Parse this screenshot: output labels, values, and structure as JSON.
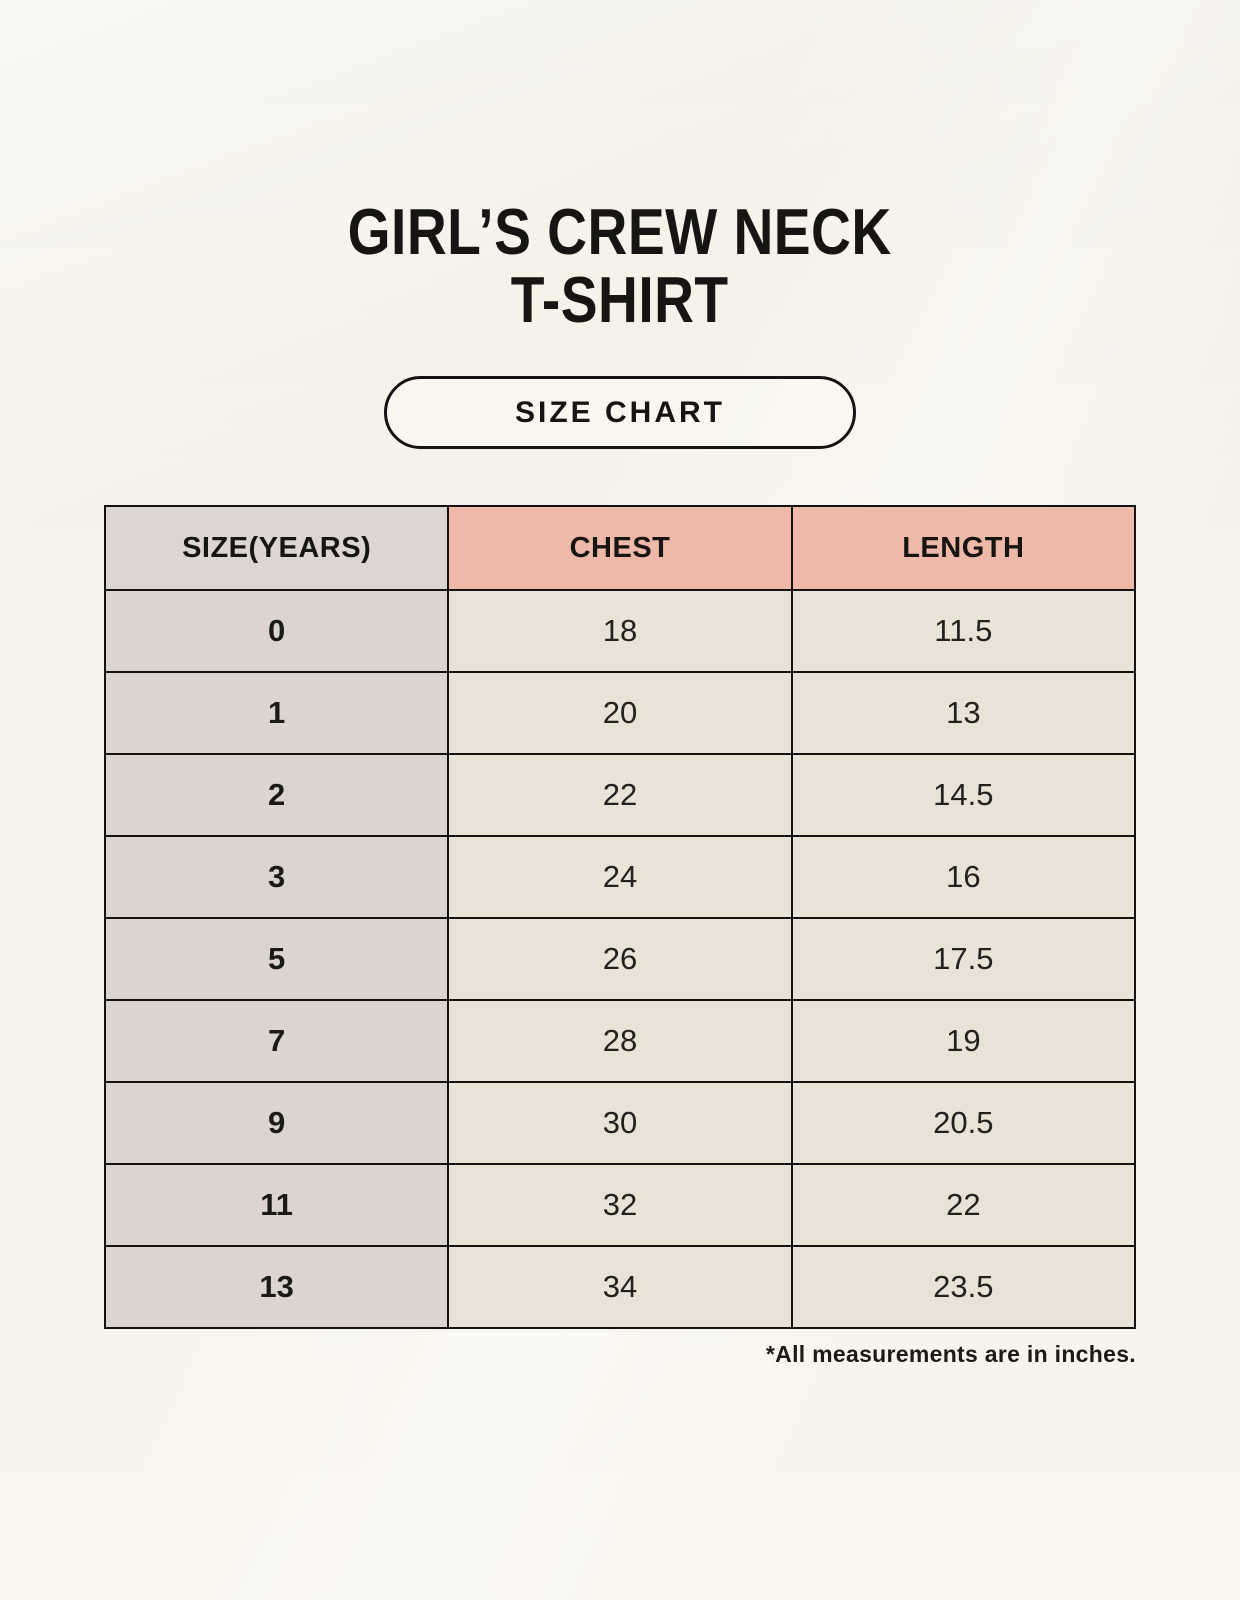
{
  "page": {
    "title_line1": "GIRL’S CREW NECK",
    "title_line2": "T-SHIRT",
    "badge_label": "SIZE CHART",
    "footnote": "*All measurements are in inches."
  },
  "colors": {
    "background": "#f5f2e9",
    "header_gray": "#dcd5d1",
    "header_salmon": "#efb9a9",
    "row_gray": "#dbd4cf",
    "row_cream": "#e9e2d6",
    "border": "#131210",
    "text": "#1c1b19"
  },
  "chart_data": {
    "type": "table",
    "title": "Girl's Crew Neck T-Shirt Size Chart",
    "units": "inches",
    "columns": [
      "SIZE(YEARS)",
      "CHEST",
      "LENGTH"
    ],
    "rows": [
      {
        "size": "0",
        "chest": "18",
        "length": "11.5"
      },
      {
        "size": "1",
        "chest": "20",
        "length": "13"
      },
      {
        "size": "2",
        "chest": "22",
        "length": "14.5"
      },
      {
        "size": "3",
        "chest": "24",
        "length": "16"
      },
      {
        "size": "5",
        "chest": "26",
        "length": "17.5"
      },
      {
        "size": "7",
        "chest": "28",
        "length": "19"
      },
      {
        "size": "9",
        "chest": "30",
        "length": "20.5"
      },
      {
        "size": "11",
        "chest": "32",
        "length": "22"
      },
      {
        "size": "13",
        "chest": "34",
        "length": "23.5"
      }
    ]
  }
}
